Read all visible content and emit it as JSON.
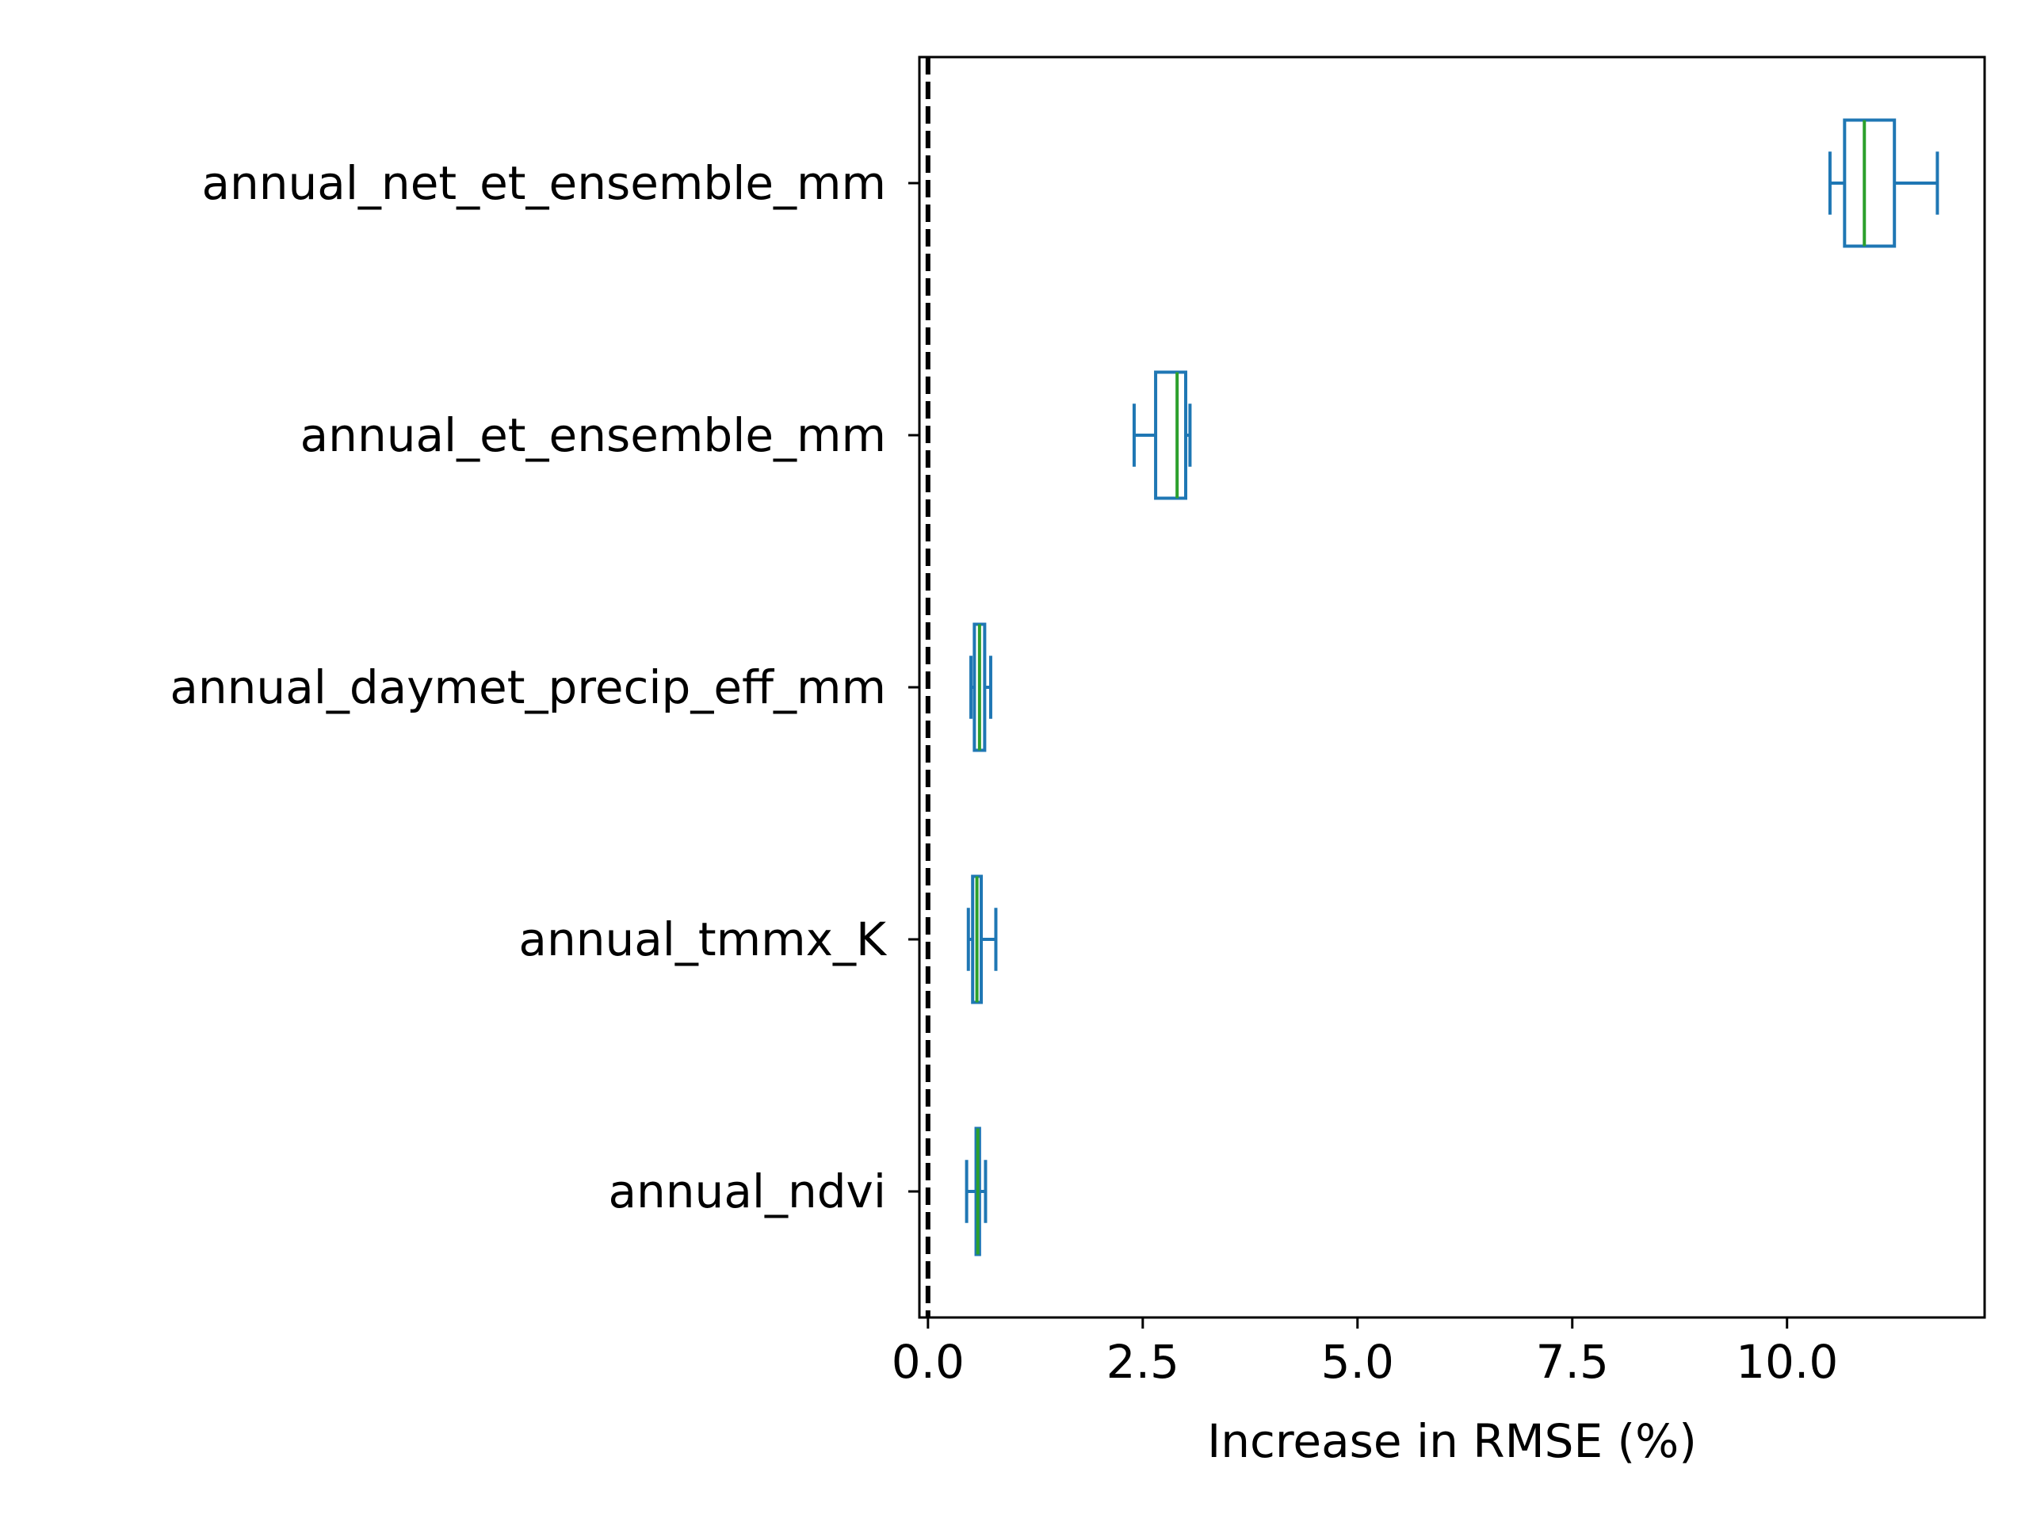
{
  "chart_data": {
    "type": "boxplot",
    "orientation": "horizontal",
    "title": "",
    "xlabel": "Increase in RMSE (%)",
    "ylabel": "",
    "xlim": [
      -0.1,
      12.3
    ],
    "xticks": [
      0.0,
      2.5,
      5.0,
      7.5,
      10.0
    ],
    "xtick_labels": [
      "0.0",
      "2.5",
      "5.0",
      "7.5",
      "10.0"
    ],
    "reference_line": {
      "x": 0.0,
      "style": "dashed",
      "color": "#000000"
    },
    "grid": false,
    "colors": {
      "box": "#1f77b4",
      "median": "#2ca02c"
    },
    "categories": [
      "annual_net_et_ensemble_mm",
      "annual_et_ensemble_mm",
      "annual_daymet_precip_eff_mm",
      "annual_tmmx_K",
      "annual_ndvi"
    ],
    "boxes": [
      {
        "label": "annual_net_et_ensemble_mm",
        "whislo": 10.5,
        "q1": 10.67,
        "med": 10.9,
        "q3": 11.25,
        "whishi": 11.75
      },
      {
        "label": "annual_et_ensemble_mm",
        "whislo": 2.4,
        "q1": 2.65,
        "med": 2.9,
        "q3": 3.0,
        "whishi": 3.05
      },
      {
        "label": "annual_daymet_precip_eff_mm",
        "whislo": 0.5,
        "q1": 0.54,
        "med": 0.6,
        "q3": 0.66,
        "whishi": 0.73
      },
      {
        "label": "annual_tmmx_K",
        "whislo": 0.47,
        "q1": 0.52,
        "med": 0.57,
        "q3": 0.62,
        "whishi": 0.79
      },
      {
        "label": "annual_ndvi",
        "whislo": 0.45,
        "q1": 0.56,
        "med": 0.58,
        "q3": 0.6,
        "whishi": 0.67
      }
    ]
  }
}
